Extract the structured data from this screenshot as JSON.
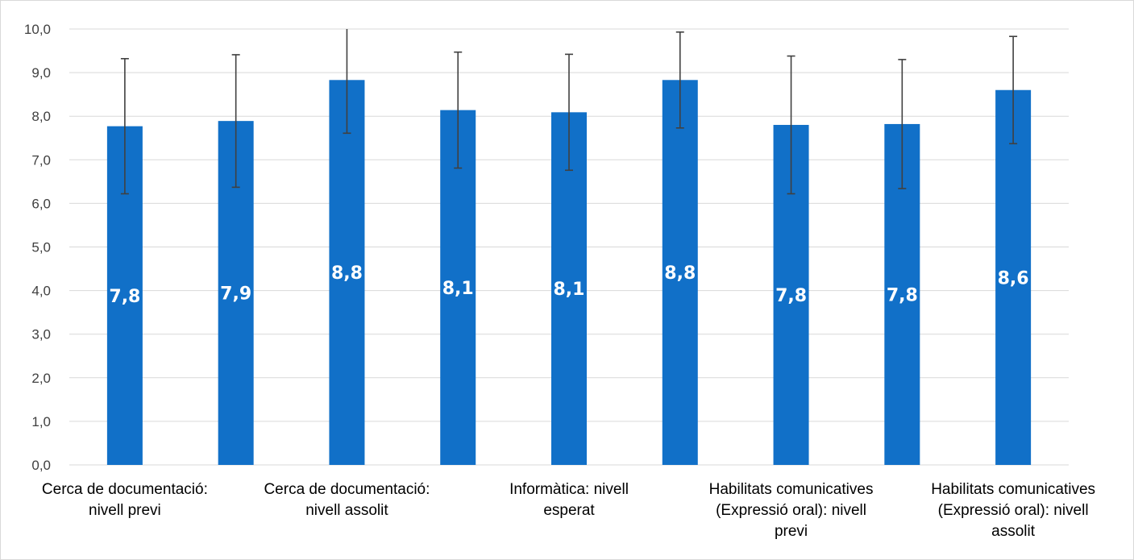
{
  "chart_data": {
    "type": "bar",
    "categories": [
      "Cerca de documentació: nivell previ",
      "",
      "Cerca de documentació: nivell assolit",
      "",
      "Informàtica: nivell esperat",
      "",
      "Habilitats comunicatives (Expressió oral): nivell previ",
      "",
      "Habilitats comunicatives (Expressió oral): nivell assolit"
    ],
    "values": [
      7.77,
      7.89,
      8.83,
      8.14,
      8.09,
      8.83,
      7.8,
      7.82,
      8.6
    ],
    "data_labels": [
      "7,8",
      "7,9",
      "8,8",
      "8,1",
      "8,1",
      "8,8",
      "7,8",
      "7,8",
      "8,6"
    ],
    "error": [
      1.55,
      1.52,
      1.22,
      1.33,
      1.33,
      1.1,
      1.58,
      1.48,
      1.23
    ],
    "ylim": [
      0,
      10
    ],
    "yticks": [
      "0,0",
      "1,0",
      "2,0",
      "3,0",
      "4,0",
      "5,0",
      "6,0",
      "7,0",
      "8,0",
      "9,0",
      "10,0"
    ],
    "grid": true,
    "title": "",
    "xlabel": "",
    "ylabel": "",
    "colors": {
      "bar": "#1170C8",
      "grid": "#d9d9d9",
      "error": "#404040"
    }
  },
  "axis_labels": [
    [
      "Cerca de documentació:",
      "nivell previ"
    ],
    [
      "Cerca de documentació:",
      "nivell assolit"
    ],
    [
      "Informàtica: nivell",
      "esperat"
    ],
    [
      "Habilitats comunicatives",
      "(Expressió oral): nivell",
      "previ"
    ],
    [
      "Habilitats comunicatives",
      "(Expressió oral): nivell",
      "assolit"
    ]
  ]
}
